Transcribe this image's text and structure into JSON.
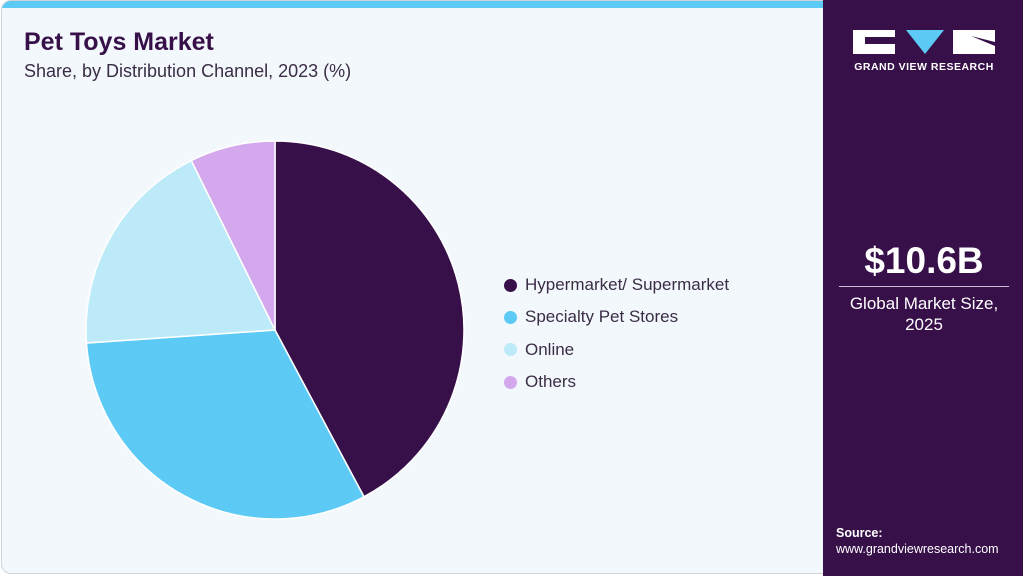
{
  "header": {
    "title": "Pet Toys Market",
    "subtitle": "Share, by Distribution Channel, 2023 (%)"
  },
  "brand": {
    "name": "GRAND VIEW RESEARCH",
    "logo_icon": "gvr-logo-icon"
  },
  "highlight": {
    "value": "$10.6B",
    "caption_line1": "Global Market Size,",
    "caption_line2": "2025"
  },
  "source": {
    "label": "Source:",
    "url": "www.grandviewresearch.com"
  },
  "colors": {
    "primary": "#371049",
    "accent": "#5ccaf5",
    "background": "#f3f8fc"
  },
  "legend": [
    {
      "label": "Hypermarket/ Supermarket",
      "color": "#371049"
    },
    {
      "label": "Specialty Pet Stores",
      "color": "#5ccaf5"
    },
    {
      "label": "Online",
      "color": "#bdeaf9"
    },
    {
      "label": "Others",
      "color": "#d3a8ec"
    }
  ],
  "chart_data": {
    "type": "pie",
    "title": "Pet Toys Market",
    "subtitle": "Share, by Distribution Channel, 2023 (%)",
    "categories": [
      "Hypermarket/ Supermarket",
      "Specialty Pet Stores",
      "Online",
      "Others"
    ],
    "values": [
      42.2,
      31.7,
      18.8,
      7.3
    ],
    "colors": [
      "#371049",
      "#5ccaf5",
      "#bdeaf9",
      "#d3a8ec"
    ],
    "start_angle": "top, clockwise",
    "legend_position": "right",
    "data_labels": false
  }
}
